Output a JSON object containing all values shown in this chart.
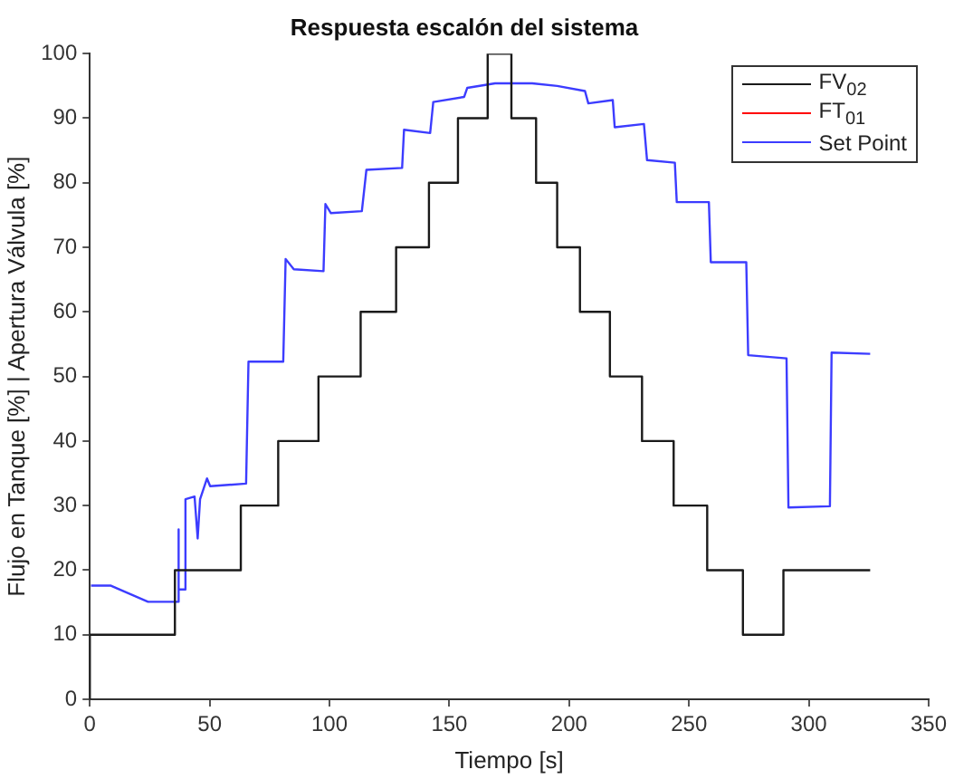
{
  "chart_data": {
    "type": "line",
    "title": "Respuesta escalón del sistema",
    "xlabel": "Tiempo [s]",
    "ylabel": "Flujo en Tanque [%] | Apertura Válvula [%]",
    "xlim": [
      0,
      350
    ],
    "xticks": [
      0,
      50,
      100,
      150,
      200,
      250,
      300,
      350
    ],
    "ylim": [
      0,
      100
    ],
    "yticks": [
      0,
      10,
      20,
      30,
      40,
      50,
      60,
      70,
      80,
      90,
      100
    ],
    "grid": false,
    "legend": "top right",
    "marker": "none",
    "line_style": "solid",
    "series": [
      {
        "name": "FV$_{02}$",
        "type": "step",
        "color": "#1a1a1a",
        "x": [
          0,
          35.5,
          63,
          78.6,
          95.4,
          113,
          127.8,
          141.5,
          153.6,
          166,
          175.9,
          186.2,
          195,
          204.5,
          217,
          230.4,
          243.6,
          257.6,
          272.5,
          289.4,
          308.8,
          325.6
        ],
        "values": [
          0,
          10,
          20,
          30,
          40,
          50,
          60,
          70,
          80,
          90,
          100,
          90,
          80,
          70,
          60,
          50,
          40,
          30,
          20,
          10,
          20,
          20
        ]
      },
      {
        "name": "FT$_{01}$",
        "color": "#ff0000"
      },
      {
        "name": "Set Point",
        "color": "#3c3cff",
        "x": [
          0.5,
          8.8,
          24.3,
          36.7,
          36.9,
          37.2,
          39.8,
          39.9,
          43.7,
          45,
          46,
          48.9,
          50.2,
          65.2,
          66.2,
          80.7,
          81.7,
          85.1,
          97.5,
          98.3,
          100.6,
          113.5,
          115.4,
          130.3,
          131.1,
          142,
          143.3,
          156.2,
          157.5,
          169.1,
          184.6,
          195,
          206.6,
          208,
          218.2,
          219,
          231.2,
          232.5,
          244.1,
          244.9,
          258.3,
          259.1,
          273.9,
          274.7,
          290.7,
          291.5,
          308.8,
          309.5,
          325.6
        ],
        "values": [
          17.6,
          17.6,
          15.1,
          15.1,
          26.3,
          17,
          17,
          31,
          31.4,
          24.9,
          31,
          34.2,
          33,
          33.4,
          52.3,
          52.3,
          68.2,
          66.6,
          66.3,
          76.7,
          75.3,
          75.6,
          82,
          82.3,
          88.2,
          87.7,
          92.5,
          93.3,
          94.7,
          95.4,
          95.4,
          95,
          94.2,
          92.3,
          92.8,
          88.6,
          89.1,
          83.5,
          83.1,
          77,
          77,
          67.7,
          67.7,
          53.3,
          52.8,
          29.7,
          29.9,
          53.7,
          53.5
        ]
      }
    ]
  }
}
